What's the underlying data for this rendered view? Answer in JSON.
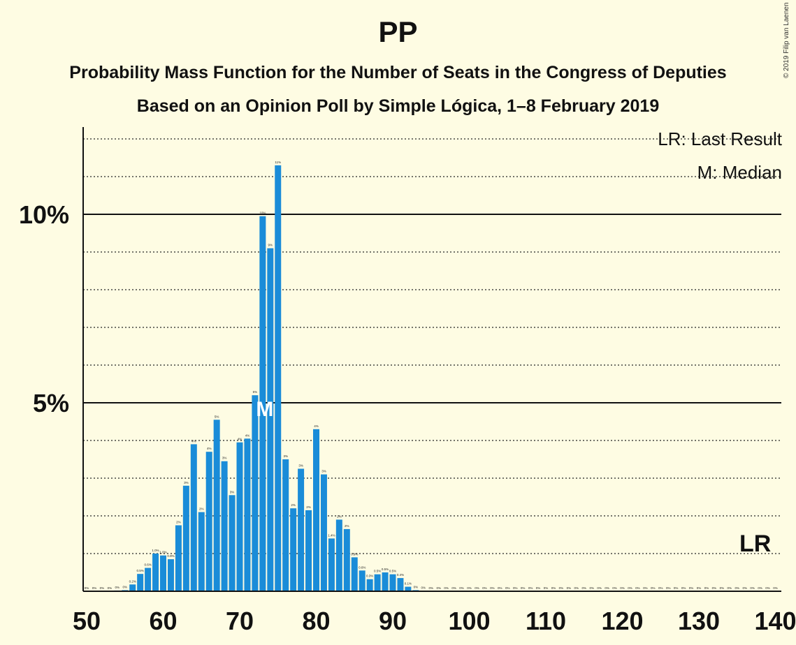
{
  "title": "PP",
  "subtitle_line1": "Probability Mass Function for the Number of Seats in the Congress of Deputies",
  "subtitle_line2": "Based on an Opinion Poll by Simple Lógica, 1–8 February 2019",
  "copyright": "© 2019 Filip van Laenen",
  "legend": {
    "last_result": "LR: Last Result",
    "median": "M: Median"
  },
  "markers": {
    "median_label": "M",
    "median_seat": 73,
    "last_result_label": "LR",
    "last_result_seat": 137
  },
  "colors": {
    "bar": "#1A8CD8",
    "background": "#FEFCE3",
    "axis": "#111111"
  },
  "chart_data": {
    "type": "bar",
    "xlabel": "",
    "ylabel": "",
    "x_ticks": [
      50,
      60,
      70,
      80,
      90,
      100,
      110,
      120,
      130,
      140
    ],
    "y_ticks": [
      {
        "value": 5,
        "label": "5%"
      },
      {
        "value": 10,
        "label": "10%"
      }
    ],
    "ylim": [
      0,
      12.3
    ],
    "xlim": [
      49.5,
      140.5
    ],
    "grid": "dotted every 1%",
    "x": [
      50,
      51,
      52,
      53,
      54,
      55,
      56,
      57,
      58,
      59,
      60,
      61,
      62,
      63,
      64,
      65,
      66,
      67,
      68,
      69,
      70,
      71,
      72,
      73,
      74,
      75,
      76,
      77,
      78,
      79,
      80,
      81,
      82,
      83,
      84,
      85,
      86,
      87,
      88,
      89,
      90,
      91,
      92,
      93,
      94,
      95,
      96,
      97,
      98,
      99,
      100,
      101,
      102,
      103,
      104,
      105,
      106,
      107,
      108,
      109,
      110,
      111,
      112,
      113,
      114,
      115,
      116,
      117,
      118,
      119,
      120,
      121,
      122,
      123,
      124,
      125,
      126,
      127,
      128,
      129,
      130,
      131,
      132,
      133,
      134,
      135,
      136,
      137,
      138,
      139,
      140
    ],
    "values": [
      0,
      0,
      0,
      0,
      0.02,
      0.03,
      0.18,
      0.46,
      0.62,
      1.0,
      0.95,
      0.85,
      1.75,
      2.8,
      3.9,
      2.1,
      3.7,
      4.55,
      3.45,
      2.55,
      3.95,
      4.05,
      5.2,
      9.95,
      9.1,
      11.3,
      3.5,
      2.2,
      3.25,
      2.15,
      4.3,
      3.1,
      1.4,
      1.9,
      1.65,
      0.9,
      0.55,
      0.32,
      0.45,
      0.5,
      0.45,
      0.35,
      0.12,
      0.03,
      0.01,
      0,
      0,
      0,
      0,
      0,
      0,
      0,
      0,
      0,
      0,
      0,
      0,
      0,
      0,
      0,
      0,
      0,
      0,
      0,
      0,
      0,
      0,
      0,
      0,
      0,
      0,
      0,
      0,
      0,
      0,
      0,
      0,
      0,
      0,
      0,
      0,
      0,
      0,
      0,
      0,
      0,
      0,
      0,
      0,
      0,
      0
    ],
    "data_labels": [
      "0%",
      "0%",
      "0%",
      "0%",
      "0%",
      "0%",
      "0.2%",
      "0.5%",
      "0.6%",
      "1.0%",
      "1.0%",
      "0.9%",
      "2%",
      "3%",
      "4%",
      "2%",
      "4%",
      "5%",
      "3%",
      "3%",
      "4%",
      "4%",
      "5%",
      "10%",
      "9%",
      "11%",
      "3%",
      "2%",
      "3%",
      "2%",
      "4%",
      "3%",
      "1.4%",
      "2%",
      "2%",
      "0.9%",
      "0.6%",
      "0.3%",
      "0.5%",
      "0.5%",
      "0.5%",
      "0.4%",
      "0.1%",
      "0%",
      "0%",
      "0%",
      "0%",
      "0%",
      "0%",
      "0%",
      "0%",
      "0%",
      "0%",
      "0%",
      "0%",
      "0%",
      "0%",
      "0%",
      "0%",
      "0%",
      "0%",
      "0%",
      "0%",
      "0%",
      "0%",
      "0%",
      "0%",
      "0%",
      "0%",
      "0%",
      "0%",
      "0%",
      "0%",
      "0%",
      "0%",
      "0%",
      "0%",
      "0%",
      "0%",
      "0%",
      "0%",
      "0%",
      "0%",
      "0%",
      "0%",
      "0%",
      "0%",
      "0%",
      "0%",
      "0%",
      "0%"
    ]
  }
}
